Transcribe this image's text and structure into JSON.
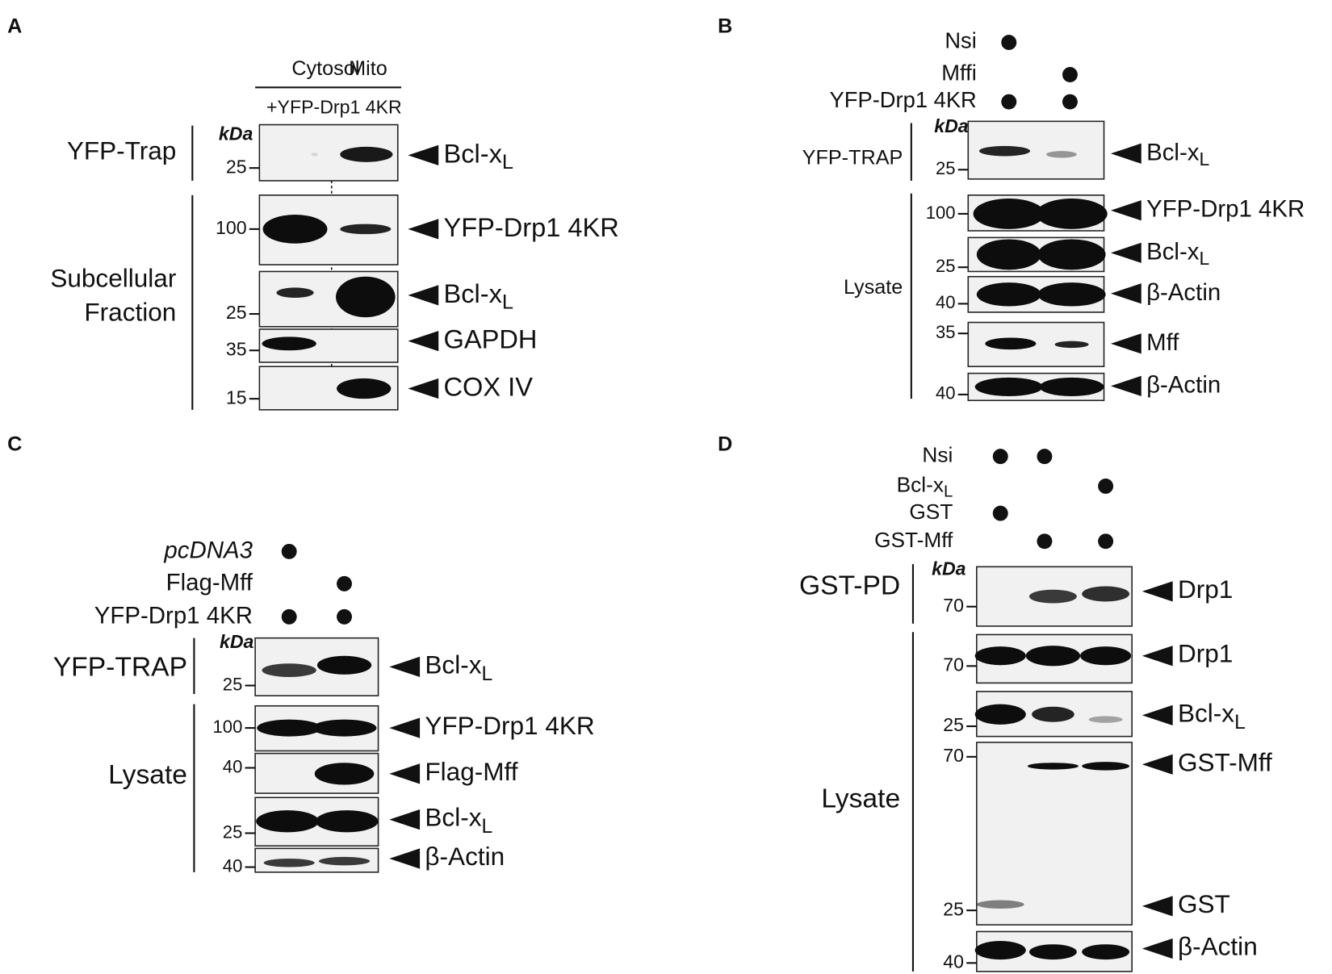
{
  "panels": [
    {
      "letter": "A",
      "columns": [
        "Cytosol",
        "Mito"
      ],
      "construct": "+YFP-Drp1 4KR",
      "unit": "kDa",
      "groups": [
        {
          "lines": [
            "YFP-Trap"
          ]
        },
        {
          "lines": [
            "Subcellular",
            "Fraction"
          ]
        }
      ],
      "blots": [
        {
          "markers": [
            25
          ],
          "targets": [
            {
              "text": "Bcl-x",
              "sub": "L"
            }
          ]
        },
        {
          "markers": [
            100
          ],
          "targets": [
            {
              "text": "YFP-Drp1 4KR"
            }
          ]
        },
        {
          "markers": [
            25
          ],
          "targets": [
            {
              "text": "Bcl-x",
              "sub": "L"
            }
          ]
        },
        {
          "markers": [
            35
          ],
          "targets": [
            {
              "text": "GAPDH"
            }
          ]
        },
        {
          "markers": [
            15
          ],
          "targets": [
            {
              "text": "COX IV"
            }
          ]
        }
      ]
    },
    {
      "letter": "B",
      "conditions": [
        {
          "text": "Nsi"
        },
        {
          "text": "Mffi"
        },
        {
          "text": "YFP-Drp1 4KR"
        }
      ],
      "unit": "kDa",
      "groups": [
        {
          "lines": [
            "YFP-TRAP"
          ]
        },
        {
          "lines": [
            "Lysate"
          ]
        }
      ],
      "blots": [
        {
          "markers": [
            25
          ],
          "targets": [
            {
              "text": "Bcl-x",
              "sub": "L"
            }
          ]
        },
        {
          "markers": [
            100
          ],
          "targets": [
            {
              "text": "YFP-Drp1 4KR"
            }
          ]
        },
        {
          "markers": [
            25
          ],
          "targets": [
            {
              "text": "Bcl-x",
              "sub": "L"
            }
          ]
        },
        {
          "markers": [
            40
          ],
          "targets": [
            {
              "text": "β-Actin"
            }
          ]
        },
        {
          "markers": [
            35
          ],
          "targets": [
            {
              "text": "Mff"
            }
          ]
        },
        {
          "markers": [
            40
          ],
          "targets": [
            {
              "text": "β-Actin"
            }
          ]
        }
      ]
    },
    {
      "letter": "C",
      "conditions": [
        {
          "text": "pcDNA3"
        },
        {
          "text": "Flag-Mff"
        },
        {
          "text": "YFP-Drp1 4KR"
        }
      ],
      "unit": "kDa",
      "groups": [
        {
          "lines": [
            "YFP-TRAP"
          ]
        },
        {
          "lines": [
            "Lysate"
          ]
        }
      ],
      "blots": [
        {
          "markers": [
            25
          ],
          "targets": [
            {
              "text": "Bcl-x",
              "sub": "L"
            }
          ]
        },
        {
          "markers": [
            100
          ],
          "targets": [
            {
              "text": "YFP-Drp1 4KR"
            }
          ]
        },
        {
          "markers": [
            40
          ],
          "targets": [
            {
              "text": "Flag-Mff"
            }
          ]
        },
        {
          "markers": [
            25
          ],
          "targets": [
            {
              "text": "Bcl-x",
              "sub": "L"
            }
          ]
        },
        {
          "markers": [
            40
          ],
          "targets": [
            {
              "text": "β-Actin"
            }
          ]
        }
      ]
    },
    {
      "letter": "D",
      "conditions": [
        {
          "text": "Nsi"
        },
        {
          "text": "Bcl-x",
          "sub": "L"
        },
        {
          "text": "GST"
        },
        {
          "text": "GST-Mff"
        }
      ],
      "unit": "kDa",
      "groups": [
        {
          "lines": [
            "GST-PD"
          ]
        },
        {
          "lines": [
            "Lysate"
          ]
        }
      ],
      "blots": [
        {
          "markers": [
            70
          ],
          "targets": [
            {
              "text": "Drp1"
            }
          ]
        },
        {
          "markers": [
            70
          ],
          "targets": [
            {
              "text": "Drp1"
            }
          ]
        },
        {
          "markers": [
            25
          ],
          "targets": [
            {
              "text": "Bcl-x",
              "sub": "L"
            }
          ]
        },
        {
          "markers": [
            70,
            25
          ],
          "targets": [
            {
              "text": "GST-Mff"
            },
            {
              "text": "GST"
            }
          ]
        },
        {
          "markers": [
            40
          ],
          "targets": [
            {
              "text": "β-Actin"
            }
          ]
        }
      ]
    }
  ]
}
